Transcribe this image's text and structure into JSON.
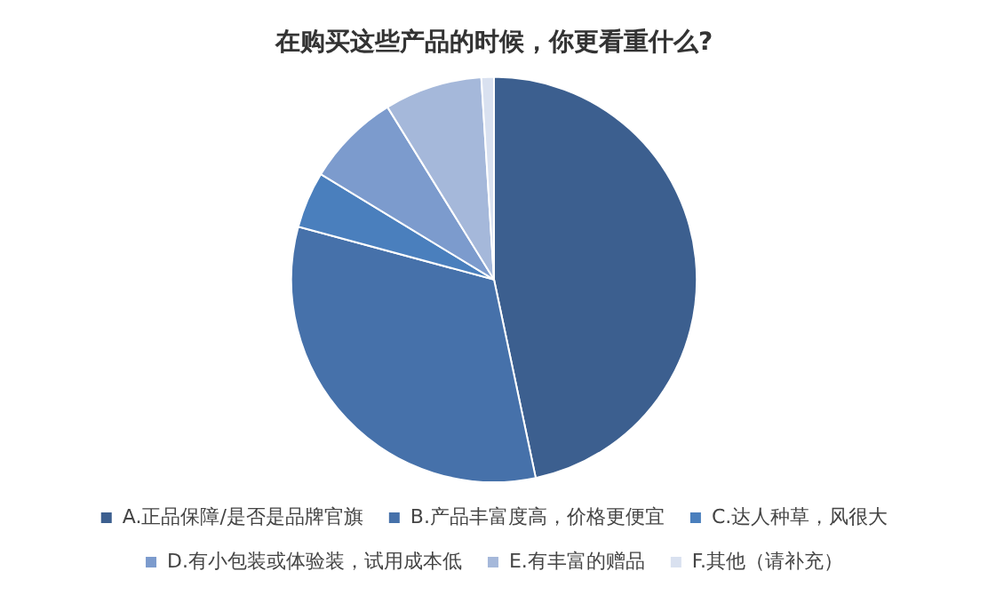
{
  "chart_data": {
    "type": "pie",
    "title": "在购买这些产品的时候，你更看重什么?",
    "categories": [
      "A.正品保障/是否是品牌官旗",
      "B.产品丰富度高，价格更便宜",
      "C.达人种草，风很大",
      "D.有小包装或体验装，试用成本低",
      "E.有丰富的赠品",
      "F.其他（请补充）"
    ],
    "values": [
      46.7,
      32.5,
      4.5,
      7.5,
      7.8,
      1
    ],
    "colors": [
      "#3c5f8f",
      "#4671aa",
      "#4a7fbd",
      "#7c9bcd",
      "#a5b8da",
      "#d9e1f0"
    ],
    "legend": "bottom"
  }
}
